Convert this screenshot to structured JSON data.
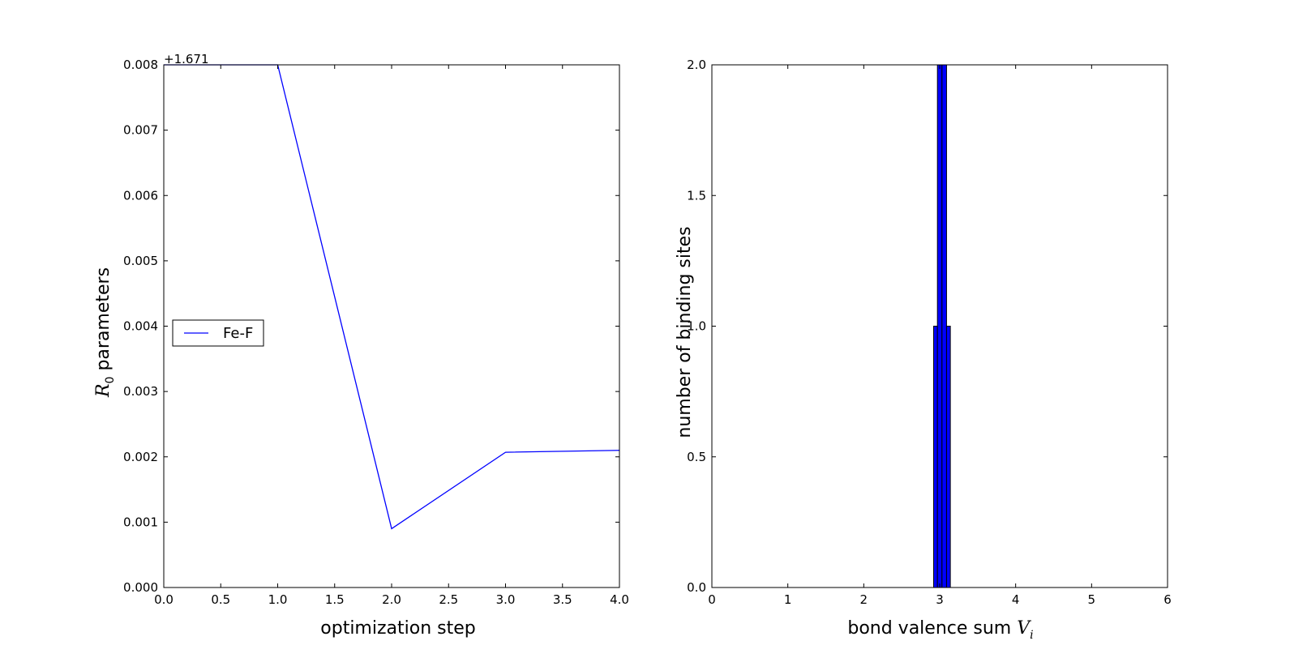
{
  "chart_data": [
    {
      "type": "line",
      "xlabel": "optimization step",
      "ylabel": {
        "symbol": "R",
        "subscript": "0",
        "text": "parameters"
      },
      "offset_text": "+1.671",
      "xlim": [
        0.0,
        4.0
      ],
      "ylim": [
        0.0,
        0.008
      ],
      "xticks": [
        "0.0",
        "0.5",
        "1.0",
        "1.5",
        "2.0",
        "2.5",
        "3.0",
        "3.5",
        "4.0"
      ],
      "yticks": [
        "0.000",
        "0.001",
        "0.002",
        "0.003",
        "0.004",
        "0.005",
        "0.006",
        "0.007",
        "0.008"
      ],
      "grid": false,
      "legend_position": "center-left",
      "series": [
        {
          "name": "Fe-F",
          "color": "#0000ff",
          "x": [
            0,
            1,
            2,
            3,
            4
          ],
          "y": [
            0.008,
            0.008,
            0.0009,
            0.00207,
            0.0021
          ]
        }
      ]
    },
    {
      "type": "bar",
      "xlabel": {
        "text": "bond valence sum",
        "symbol": "V",
        "subscript": "i"
      },
      "ylabel": "number of binding sites",
      "xlim": [
        0,
        6
      ],
      "ylim": [
        0.0,
        2.0
      ],
      "xticks": [
        "0",
        "1",
        "2",
        "3",
        "4",
        "5",
        "6"
      ],
      "yticks": [
        "0.0",
        "0.5",
        "1.0",
        "1.5",
        "2.0"
      ],
      "grid": false,
      "bar_color": "#0000ff",
      "bins": [
        {
          "left": 2.92,
          "right": 2.97,
          "value": 1
        },
        {
          "left": 2.97,
          "right": 3.03,
          "value": 2
        },
        {
          "left": 3.03,
          "right": 3.09,
          "value": 2
        },
        {
          "left": 3.09,
          "right": 3.14,
          "value": 1
        }
      ]
    }
  ]
}
